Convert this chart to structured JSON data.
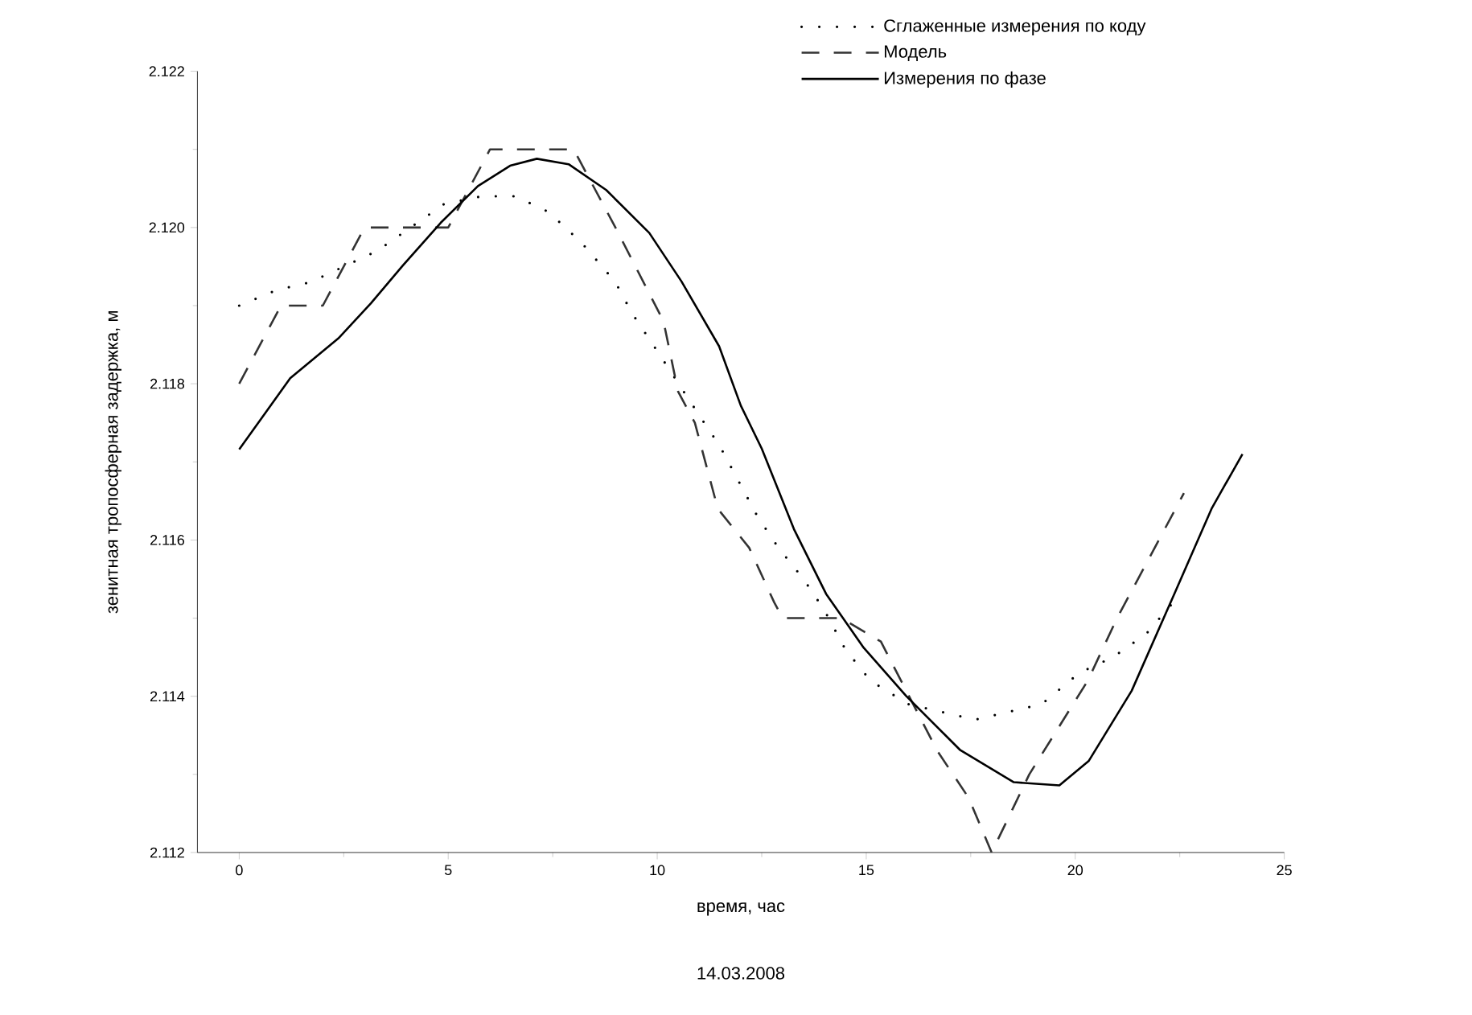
{
  "chart_data": {
    "type": "line",
    "xlabel": "время, час",
    "ylabel": "зенитная тропосферная задержка, м",
    "annotations": [
      "14.03.2008"
    ],
    "xlim": [
      -1,
      25
    ],
    "ylim": [
      2.112,
      2.122
    ],
    "xticks": [
      0,
      5,
      10,
      15,
      20,
      25
    ],
    "yticks": [
      {
        "value": 2.112,
        "label": "2.112"
      },
      {
        "value": 2.114,
        "label": "2.114"
      },
      {
        "value": 2.116,
        "label": "2.116"
      },
      {
        "value": 2.118,
        "label": "2.118"
      },
      {
        "value": 2.12,
        "label": "2.120"
      },
      {
        "value": 2.122,
        "label": "2.122"
      }
    ],
    "legend": "top right",
    "series": [
      {
        "name": "Сглаженные измерения по коду",
        "color": "#000000",
        "line_style": "dotted",
        "x": [
          0,
          0.9,
          1.7,
          2.5,
          3.3,
          4.9,
          5.8,
          6.6,
          7.4,
          8.2,
          9.0,
          9.4,
          9.9,
          11.0,
          11.5,
          11.9,
          12.4,
          12.9,
          13.5,
          14.0,
          14.5,
          15.1,
          16.0,
          16.8,
          17.6,
          18.4,
          19.2,
          20.1,
          20.9,
          21.7,
          22.5
        ],
        "values": [
          2.119,
          2.1192,
          2.1193,
          2.1195,
          2.1197,
          2.1203,
          2.1204,
          2.1204,
          2.1202,
          2.1198,
          2.1193,
          2.1189,
          2.1185,
          2.1176,
          2.1172,
          2.1168,
          2.1163,
          2.1159,
          2.1155,
          2.1151,
          2.1146,
          2.1142,
          2.1139,
          2.1138,
          2.1137,
          2.1138,
          2.1139,
          2.1143,
          2.1145,
          2.1148,
          2.1153
        ]
      },
      {
        "name": "Модель",
        "color": "#333333",
        "line_style": "dashed",
        "x": [
          0,
          1,
          2,
          3,
          4,
          5,
          6,
          7,
          8,
          9,
          10.15,
          10.5,
          10.9,
          11.45,
          12.2,
          12.8,
          13,
          14,
          14.4,
          15.35,
          16.7,
          17.45,
          18,
          18.9,
          19.6,
          20.3,
          21,
          21.7,
          22.6
        ],
        "values": [
          2.118,
          2.119,
          2.119,
          2.12,
          2.12,
          2.12,
          2.121,
          2.121,
          2.121,
          2.12,
          2.1188,
          2.1179,
          2.1175,
          2.1164,
          2.1159,
          2.1152,
          2.115,
          2.115,
          2.115,
          2.1147,
          2.1133,
          2.1127,
          2.112,
          2.113,
          2.1136,
          2.1142,
          2.115,
          2.1157,
          2.1166
        ]
      },
      {
        "name": "Измерения по фазе",
        "color": "#000000",
        "line_style": "solid",
        "x": [
          0,
          1.22,
          2.37,
          3.15,
          3.91,
          4.82,
          5.71,
          6.48,
          7.12,
          7.88,
          8.78,
          9.81,
          10.58,
          11.48,
          12.0,
          12.5,
          13.27,
          14.04,
          14.94,
          15.96,
          17.25,
          18.53,
          19.62,
          20.32,
          21.35,
          22.37,
          23.27,
          24.0
        ],
        "values": [
          2.11716,
          2.11807,
          2.11858,
          2.11903,
          2.11951,
          2.12006,
          2.12053,
          2.12079,
          2.12088,
          2.12081,
          2.12048,
          2.11993,
          2.11931,
          2.11848,
          2.11772,
          2.11717,
          2.11614,
          2.11531,
          2.11462,
          2.114,
          2.11331,
          2.1129,
          2.11286,
          2.11317,
          2.11407,
          2.11531,
          2.11641,
          2.1171
        ]
      }
    ]
  }
}
